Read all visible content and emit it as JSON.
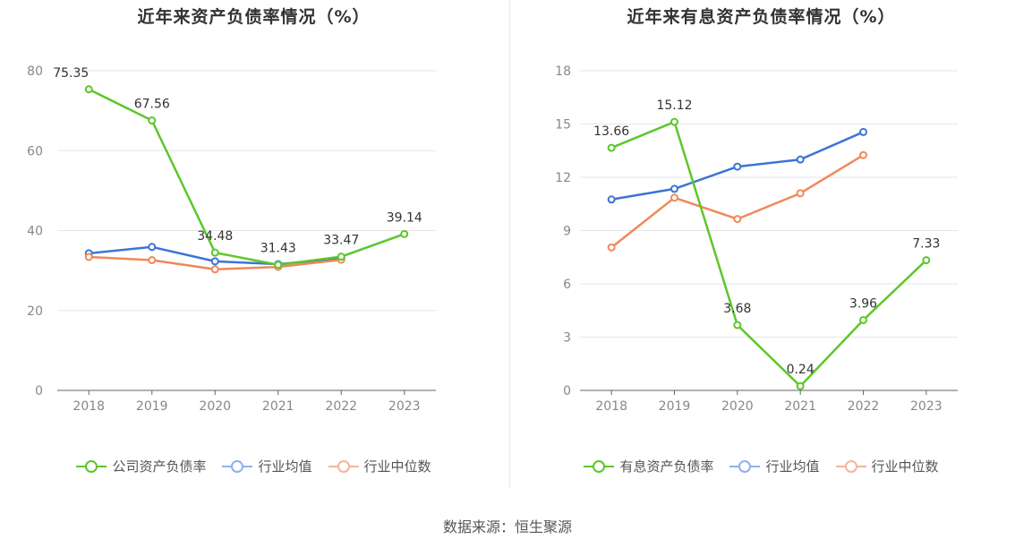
{
  "source_text": "数据来源：恒生聚源",
  "chart_data": [
    {
      "type": "line",
      "title": "近年来资产负债率情况（%）",
      "categories": [
        "2018",
        "2019",
        "2020",
        "2021",
        "2022",
        "2023"
      ],
      "ylim": [
        0,
        80
      ],
      "yticks": [
        0,
        20,
        40,
        60,
        80
      ],
      "grid": true,
      "legend_position": "bottom",
      "series": [
        {
          "name": "公司资产负债率",
          "color": "#5cc72a",
          "values": [
            75.35,
            67.56,
            34.48,
            31.43,
            33.47,
            39.14
          ],
          "labels": [
            "75.35",
            "67.56",
            "34.48",
            "31.43",
            "33.47",
            "39.14"
          ]
        },
        {
          "name": "行业均值",
          "color": "#3b74d8",
          "values": [
            34.3,
            35.9,
            32.3,
            31.6,
            33.0,
            null
          ]
        },
        {
          "name": "行业中位数",
          "color": "#f0885a",
          "values": [
            33.4,
            32.6,
            30.3,
            30.9,
            32.7,
            null
          ]
        }
      ]
    },
    {
      "type": "line",
      "title": "近年来有息资产负债率情况（%）",
      "categories": [
        "2018",
        "2019",
        "2020",
        "2021",
        "2022",
        "2023"
      ],
      "ylim": [
        0,
        18
      ],
      "yticks": [
        0,
        3,
        6,
        9,
        12,
        15,
        18
      ],
      "grid": true,
      "legend_position": "bottom",
      "series": [
        {
          "name": "有息资产负债率",
          "color": "#5cc72a",
          "values": [
            13.66,
            15.12,
            3.68,
            0.24,
            3.96,
            7.33
          ],
          "labels": [
            "13.66",
            "15.12",
            "3.68",
            "0.24",
            "3.96",
            "7.33"
          ]
        },
        {
          "name": "行业均值",
          "color": "#3b74d8",
          "values": [
            10.75,
            11.35,
            12.6,
            13.0,
            14.55,
            null
          ]
        },
        {
          "name": "行业中位数",
          "color": "#f0885a",
          "values": [
            8.05,
            10.85,
            9.65,
            11.1,
            13.25,
            null
          ]
        }
      ]
    }
  ]
}
